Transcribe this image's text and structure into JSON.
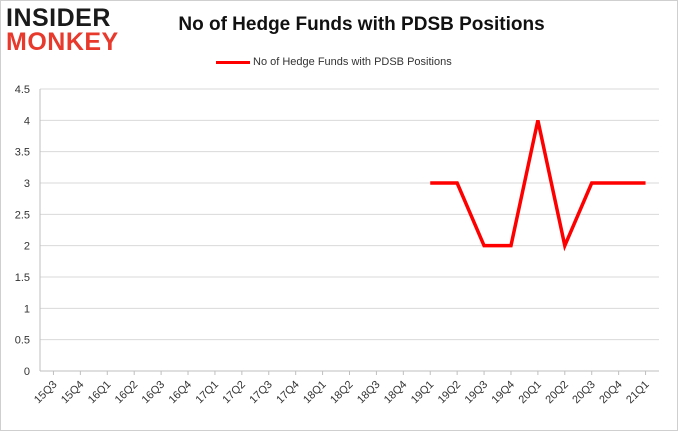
{
  "logo": {
    "line1": "INSIDER",
    "line2": "MONKEY"
  },
  "colors": {
    "series": "#ff0000",
    "grid": "#d9d9d9",
    "logo_accent": "#e8392d"
  },
  "chart_data": {
    "type": "line",
    "title": "No of Hedge Funds with PDSB Positions",
    "xlabel": "",
    "ylabel": "",
    "categories": [
      "15Q3",
      "15Q4",
      "16Q1",
      "16Q2",
      "16Q3",
      "16Q4",
      "17Q1",
      "17Q2",
      "17Q3",
      "17Q4",
      "18Q1",
      "18Q2",
      "18Q3",
      "18Q4",
      "19Q1",
      "19Q2",
      "19Q3",
      "19Q4",
      "20Q1",
      "20Q2",
      "20Q3",
      "20Q4",
      "21Q1"
    ],
    "series": [
      {
        "name": "No of Hedge Funds with PDSB Positions",
        "values": [
          null,
          null,
          null,
          null,
          null,
          null,
          null,
          null,
          null,
          null,
          null,
          null,
          null,
          null,
          3,
          3,
          2,
          2,
          4,
          2,
          3,
          3,
          3
        ]
      }
    ],
    "ylim": [
      0,
      4.5
    ],
    "yticks": [
      "0",
      "0.5",
      "1",
      "1.5",
      "2",
      "2.5",
      "3",
      "3.5",
      "4",
      "4.5"
    ],
    "grid": true,
    "legend_position": "top-center"
  }
}
